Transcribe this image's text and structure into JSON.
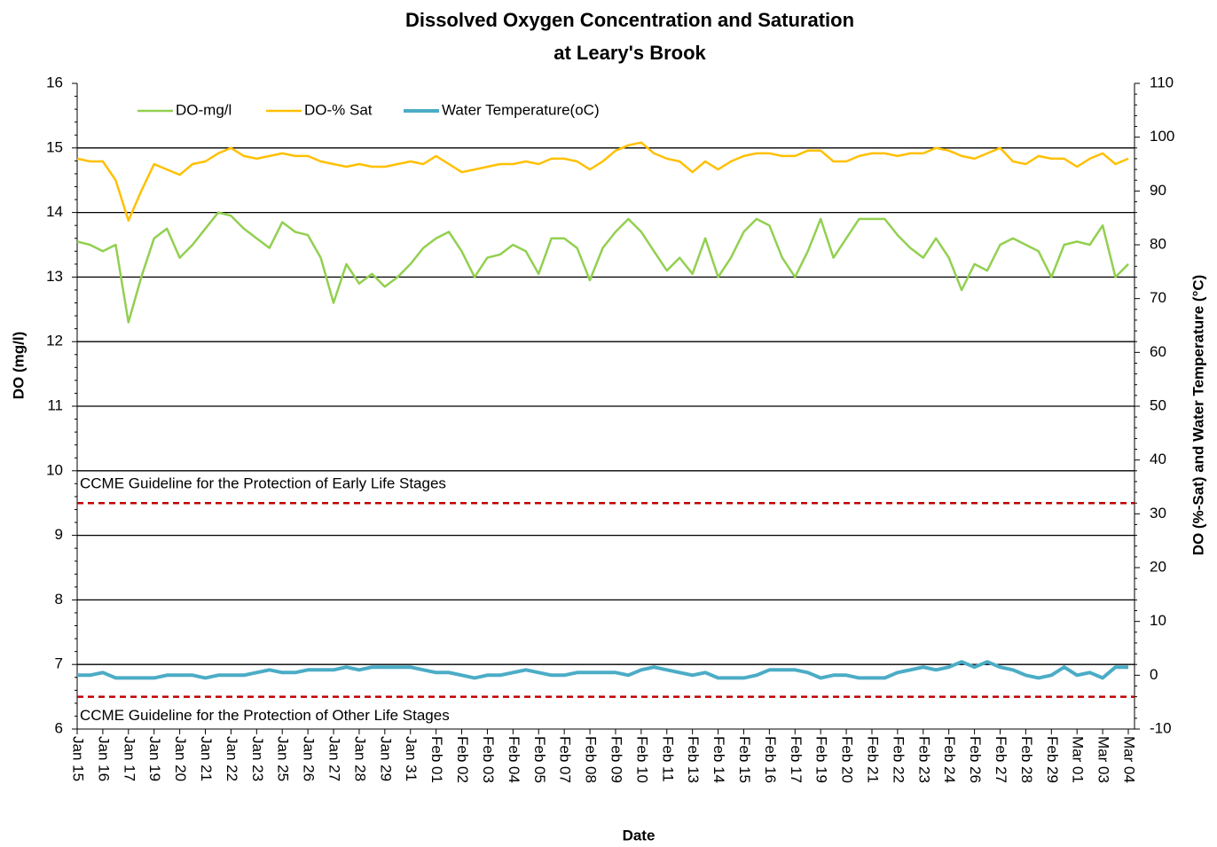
{
  "chart_data": {
    "type": "line",
    "title": "Dissolved Oxygen Concentration and Saturation",
    "subtitle": "at Leary's Brook",
    "x_label": "Date",
    "y_label": "DO (mg/l)",
    "y2_label": "DO (%-Sat) and Water Temperature  (°C)",
    "categories": [
      "Jan 15",
      null,
      "Jan 16",
      null,
      "Jan 17",
      null,
      "Jan 19",
      null,
      "Jan 20",
      null,
      "Jan 21",
      null,
      "Jan 22",
      null,
      "Jan 23",
      null,
      "Jan 25",
      null,
      "Jan 26",
      null,
      "Jan 27",
      null,
      "Jan 28",
      null,
      "Jan 29",
      null,
      "Jan 31",
      null,
      "Feb 01",
      null,
      "Feb 02",
      null,
      "Feb 03",
      null,
      "Feb 04",
      null,
      "Feb 05",
      null,
      "Feb 07",
      null,
      "Feb 08",
      null,
      "Feb 09",
      null,
      "Feb 10",
      null,
      "Feb 11",
      null,
      "Feb 13",
      null,
      "Feb 14",
      null,
      "Feb 15",
      null,
      "Feb 16",
      null,
      "Feb 17",
      null,
      "Feb 19",
      null,
      "Feb 20",
      null,
      "Feb 21",
      null,
      "Feb 22",
      null,
      "Feb 23",
      null,
      "Feb 24",
      null,
      "Feb 26",
      null,
      "Feb 27",
      null,
      "Feb 28",
      null,
      "Feb 29",
      null,
      "Mar 01",
      null,
      "Mar 03",
      null,
      "Mar 04"
    ],
    "series": [
      {
        "name": "DO-mg/l",
        "color": "#92d050",
        "width": 2.5,
        "values": [
          13.55,
          13.5,
          13.4,
          13.5,
          12.3,
          13.0,
          13.6,
          13.75,
          13.3,
          13.5,
          13.75,
          14.0,
          13.95,
          13.75,
          13.6,
          13.45,
          13.85,
          13.7,
          13.65,
          13.3,
          12.6,
          13.2,
          12.9,
          13.05,
          12.85,
          13.0,
          13.2,
          13.45,
          13.6,
          13.7,
          13.4,
          13.0,
          13.3,
          13.35,
          13.5,
          13.4,
          13.05,
          13.6,
          13.6,
          13.45,
          12.95,
          13.45,
          13.7,
          13.9,
          13.7,
          13.4,
          13.1,
          13.3,
          13.05,
          13.6,
          13.0,
          13.3,
          13.7,
          13.9,
          13.8,
          13.3,
          13.0,
          13.4,
          13.9,
          13.3,
          13.6,
          13.9,
          13.9,
          13.9,
          13.65,
          13.45,
          13.3,
          13.6,
          13.3,
          12.8,
          13.2,
          13.1,
          13.5,
          13.6,
          13.5,
          13.4,
          13.0,
          13.5,
          13.55,
          13.5,
          13.8,
          13.0,
          13.2
        ]
      },
      {
        "name": "DO-% Sat",
        "color": "#ffc000",
        "width": 2.5,
        "axis": "y2",
        "values": [
          96,
          95.5,
          95.5,
          92,
          84.5,
          90,
          95,
          94,
          93,
          95,
          95.5,
          97,
          98,
          96.5,
          96,
          96.5,
          97,
          96.5,
          96.5,
          95.5,
          95,
          94.5,
          95,
          94.5,
          94.5,
          95,
          95.5,
          95,
          96.5,
          95,
          93.5,
          94,
          94.5,
          95,
          95,
          95.5,
          95,
          96,
          96,
          95.5,
          94,
          95.5,
          97.5,
          98.5,
          99,
          97,
          96,
          95.5,
          93.5,
          95.5,
          94,
          95.5,
          96.5,
          97,
          97,
          96.5,
          96.5,
          97.5,
          97.5,
          95.5,
          95.5,
          96.5,
          97,
          97,
          96.5,
          97,
          97,
          98,
          97.5,
          96.5,
          96,
          97,
          98,
          95.5,
          95,
          96.5,
          96,
          96,
          94.5,
          96,
          97,
          95,
          96
        ]
      },
      {
        "name": "Water Temperature(oC)",
        "color": "#4bacc6",
        "width": 4,
        "axis": "y2",
        "values": [
          0,
          0,
          0.5,
          -0.5,
          -0.5,
          -0.5,
          -0.5,
          0,
          0,
          0,
          -0.5,
          0,
          0,
          0,
          0.5,
          1,
          0.5,
          0.5,
          1,
          1,
          1,
          1.5,
          1,
          1.5,
          1.5,
          1.5,
          1.5,
          1,
          0.5,
          0.5,
          0,
          -0.5,
          0,
          0,
          0.5,
          1,
          0.5,
          0,
          0,
          0.5,
          0.5,
          0.5,
          0.5,
          0,
          1,
          1.5,
          1,
          0.5,
          0,
          0.5,
          -0.5,
          -0.5,
          -0.5,
          0,
          1,
          1,
          1,
          0.5,
          -0.5,
          0,
          0,
          -0.5,
          -0.5,
          -0.5,
          0.5,
          1,
          1.5,
          1,
          1.5,
          2.5,
          1.5,
          2.5,
          1.5,
          1,
          0,
          -0.5,
          0,
          1.5,
          0,
          0.5,
          -0.5,
          1.5,
          1.5
        ]
      }
    ],
    "ylim": [
      6,
      16
    ],
    "yticks": [
      6,
      7,
      8,
      9,
      10,
      11,
      12,
      13,
      14,
      15,
      16
    ],
    "y2lim": [
      -10,
      110
    ],
    "y2ticks": [
      -10,
      0,
      10,
      20,
      30,
      40,
      50,
      60,
      70,
      80,
      90,
      100,
      110
    ],
    "grid": true,
    "reference_lines": [
      {
        "value": 9.5,
        "label": "CCME Guideline for the Protection of Early Life Stages",
        "color": "#c00000"
      },
      {
        "value": 6.5,
        "label": "CCME Guideline for the Protection of Other Life Stages",
        "color": "#c00000"
      }
    ],
    "legend": "top-left"
  }
}
